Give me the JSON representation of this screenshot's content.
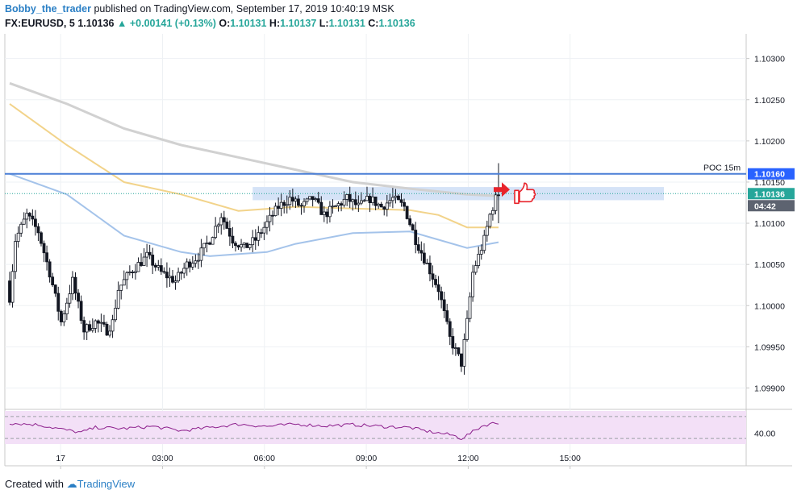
{
  "header": {
    "author": "Bobby_the_trader",
    "published": "published on TradingView.com, September 17, 2019 10:40:19 MSK",
    "symbol": "FX:EURUSD, 5",
    "last": "1.10136",
    "change": "+0.00141 (+0.13%)",
    "o_label": "O:",
    "o": "1.10131",
    "h_label": "H:",
    "h": "1.10137",
    "l_label": "L:",
    "l": "1.10131",
    "c_label": "C:",
    "c": "1.10136"
  },
  "footer": {
    "created_with": "Created with",
    "brand": "TradingView"
  },
  "colors": {
    "up_candle": "#ffffff",
    "down_candle": "#131722",
    "wick": "#131722",
    "ma_gray": "#d1d1d1",
    "ma_yellow": "#f2d38a",
    "ma_blue": "#a4c3ea",
    "poc_line": "#4a7fd6",
    "zone": "#d5e3f7",
    "rsi_bg": "#f3e0f7",
    "rsi_line": "#8c1e8c",
    "arrow": "#e8232b",
    "tag_blue": "#2962ff",
    "tag_dark": "#5d6370"
  },
  "chart_data": {
    "type": "candlestick",
    "symbol": "FX:EURUSD",
    "timeframe": "5",
    "x_ticks": [
      "17",
      "03:00",
      "06:00",
      "09:00",
      "12:00",
      "15:00"
    ],
    "y_ticks": [
      "1.10300",
      "1.10250",
      "1.10200",
      "1.10150",
      "1.10100",
      "1.10050",
      "1.10000",
      "1.09950",
      "1.09900"
    ],
    "ylim": [
      1.09875,
      1.1033
    ],
    "poc": {
      "label": "POC 15m",
      "value": 1.1016,
      "value_label": "1.10160"
    },
    "last_price": {
      "value": 1.10136,
      "label": "1.10136",
      "countdown": "04:42"
    },
    "zone": {
      "from": 1.10128,
      "to": 1.10144
    },
    "close_path": [
      [
        0,
        1.1001
      ],
      [
        2,
        1.1008
      ],
      [
        6,
        1.1011
      ],
      [
        10,
        1.1009
      ],
      [
        14,
        1.1004
      ],
      [
        18,
        1.0998
      ],
      [
        22,
        1.1003
      ],
      [
        26,
        1.0997
      ],
      [
        30,
        1.0998
      ],
      [
        34,
        1.0997
      ],
      [
        36,
        1.0998
      ],
      [
        38,
        1.1002
      ],
      [
        42,
        1.1004
      ],
      [
        48,
        1.1006
      ],
      [
        53,
        1.1004
      ],
      [
        58,
        1.1003
      ],
      [
        62,
        1.1005
      ],
      [
        66,
        1.1006
      ],
      [
        70,
        1.1008
      ],
      [
        74,
        1.1011
      ],
      [
        78,
        1.1008
      ],
      [
        82,
        1.1007
      ],
      [
        86,
        1.1008
      ],
      [
        90,
        1.101
      ],
      [
        94,
        1.1012
      ],
      [
        98,
        1.1013
      ],
      [
        102,
        1.1012
      ],
      [
        106,
        1.1013
      ],
      [
        110,
        1.1011
      ],
      [
        114,
        1.1012
      ],
      [
        118,
        1.1013
      ],
      [
        122,
        1.1012
      ],
      [
        126,
        1.1013
      ],
      [
        130,
        1.1012
      ],
      [
        134,
        1.1013
      ],
      [
        138,
        1.1012
      ],
      [
        140,
        1.101
      ],
      [
        142,
        1.1008
      ],
      [
        146,
        1.1005
      ],
      [
        150,
        1.1002
      ],
      [
        154,
        1.0996
      ],
      [
        158,
        1.0993
      ],
      [
        160,
        1.0998
      ],
      [
        162,
        1.1004
      ],
      [
        164,
        1.1006
      ],
      [
        166,
        1.1008
      ],
      [
        168,
        1.1011
      ],
      [
        170,
        1.1013
      ],
      [
        171,
        1.10136
      ]
    ],
    "series": [
      {
        "type": "ma",
        "color": "#d1d1d1",
        "points": [
          [
            0,
            1.1027
          ],
          [
            20,
            1.10245
          ],
          [
            40,
            1.10215
          ],
          [
            60,
            1.10195
          ],
          [
            80,
            1.1018
          ],
          [
            100,
            1.10165
          ],
          [
            120,
            1.1015
          ],
          [
            140,
            1.10142
          ],
          [
            160,
            1.10135
          ],
          [
            171,
            1.10133
          ]
        ]
      },
      {
        "type": "ma",
        "color": "#f2d38a",
        "points": [
          [
            0,
            1.10245
          ],
          [
            20,
            1.10195
          ],
          [
            40,
            1.1015
          ],
          [
            60,
            1.10135
          ],
          [
            80,
            1.10115
          ],
          [
            100,
            1.1012
          ],
          [
            120,
            1.10118
          ],
          [
            140,
            1.10116
          ],
          [
            150,
            1.1011
          ],
          [
            160,
            1.10095
          ],
          [
            171,
            1.10095
          ]
        ]
      },
      {
        "type": "ma",
        "color": "#a4c3ea",
        "points": [
          [
            0,
            1.1016
          ],
          [
            20,
            1.10135
          ],
          [
            40,
            1.10085
          ],
          [
            60,
            1.10065
          ],
          [
            70,
            1.1006
          ],
          [
            90,
            1.10065
          ],
          [
            100,
            1.10075
          ],
          [
            120,
            1.10088
          ],
          [
            140,
            1.1009
          ],
          [
            150,
            1.1008
          ],
          [
            160,
            1.1007
          ],
          [
            171,
            1.10077
          ]
        ]
      }
    ],
    "rsi": {
      "label": "40.00",
      "upper_level": 70,
      "lower_level": 30,
      "ylim": [
        20,
        80
      ],
      "points": [
        [
          0,
          58
        ],
        [
          10,
          55
        ],
        [
          20,
          45
        ],
        [
          25,
          41
        ],
        [
          30,
          50
        ],
        [
          40,
          48
        ],
        [
          50,
          52
        ],
        [
          60,
          44
        ],
        [
          70,
          50
        ],
        [
          80,
          56
        ],
        [
          90,
          52
        ],
        [
          100,
          56
        ],
        [
          110,
          53
        ],
        [
          120,
          55
        ],
        [
          130,
          52
        ],
        [
          140,
          50
        ],
        [
          145,
          44
        ],
        [
          150,
          40
        ],
        [
          155,
          36
        ],
        [
          158,
          30
        ],
        [
          162,
          42
        ],
        [
          165,
          52
        ],
        [
          168,
          57
        ],
        [
          171,
          58
        ]
      ]
    }
  }
}
